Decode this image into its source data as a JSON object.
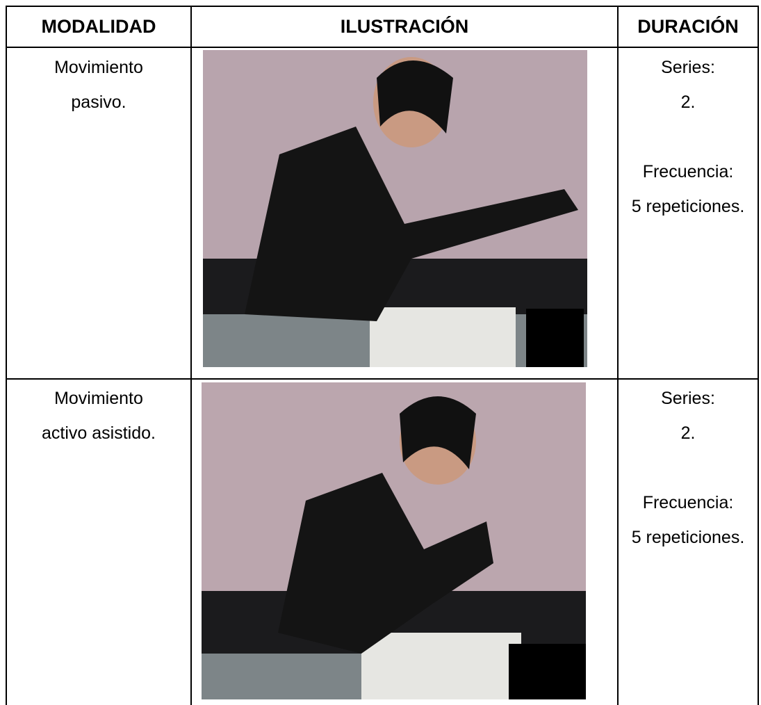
{
  "table": {
    "header": [
      "MODALIDAD",
      "ILUSTRACIÓN",
      "DURACIÓN"
    ],
    "rows": [
      {
        "modalidad": [
          "Movimiento",
          "pasivo."
        ],
        "duracion": [
          "Series:",
          "2.",
          "Frecuencia:",
          "5 repeticiones."
        ]
      },
      {
        "modalidad": [
          "Movimiento",
          "activo asistido."
        ],
        "duracion": [
          "Series:",
          "2.",
          "Frecuencia:",
          "5 repeticiones."
        ]
      }
    ]
  }
}
